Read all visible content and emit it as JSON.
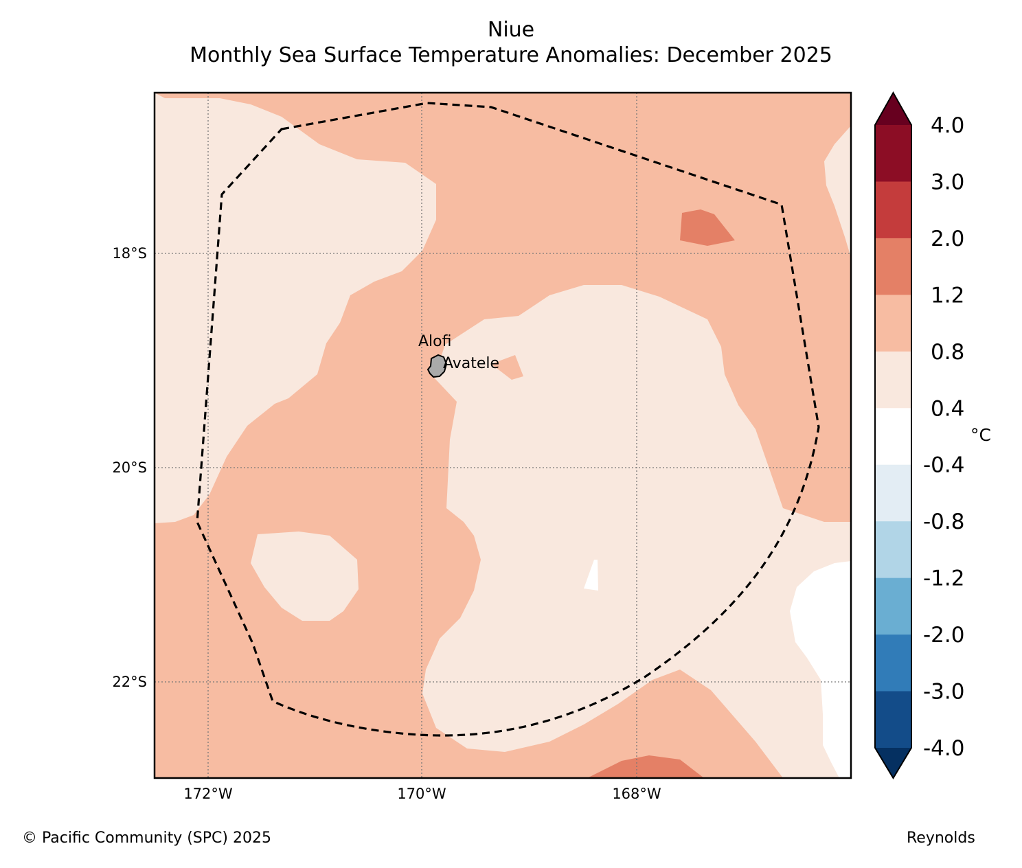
{
  "title": {
    "region": "Niue",
    "subtitle": "Monthly Sea Surface Temperature Anomalies: December 2025"
  },
  "map": {
    "lat_labels": [
      "18°S",
      "20°S",
      "22°S"
    ],
    "lon_labels": [
      "172°W",
      "170°W",
      "168°W"
    ],
    "places": [
      {
        "name": "Alofi"
      },
      {
        "name": "Avatele"
      }
    ],
    "island": "Niue",
    "eez_boundary": "dashed"
  },
  "legend": {
    "unit": "°C",
    "tick_labels": [
      "4.0",
      "3.0",
      "2.0",
      "1.2",
      "0.8",
      "0.4",
      "-0.4",
      "-0.8",
      "-1.2",
      "-2.0",
      "-3.0",
      "-4.0"
    ],
    "bands": [
      {
        "range": "> 4.0",
        "color": "#67001f"
      },
      {
        "range": "3.0 to 4.0",
        "color": "#8c0d25"
      },
      {
        "range": "2.0 to 3.0",
        "color": "#c43c3c"
      },
      {
        "range": "1.2 to 2.0",
        "color": "#e48066"
      },
      {
        "range": "0.8 to 1.2",
        "color": "#f7bca2"
      },
      {
        "range": "0.4 to 0.8",
        "color": "#f9e8de"
      },
      {
        "range": "-0.4 to 0.4",
        "color": "#ffffff"
      },
      {
        "range": "-0.8 to -0.4",
        "color": "#e3edf4"
      },
      {
        "range": "-1.2 to -0.8",
        "color": "#b1d5e7"
      },
      {
        "range": "-2.0 to -1.2",
        "color": "#6aaed2"
      },
      {
        "range": "-3.0 to -2.0",
        "color": "#317cb8"
      },
      {
        "range": "-4.0 to -3.0",
        "color": "#134c89"
      },
      {
        "range": "< -4.0",
        "color": "#053061"
      }
    ]
  },
  "footer": {
    "copyright": "© Pacific Community (SPC) 2025",
    "dataset": "Reynolds"
  }
}
